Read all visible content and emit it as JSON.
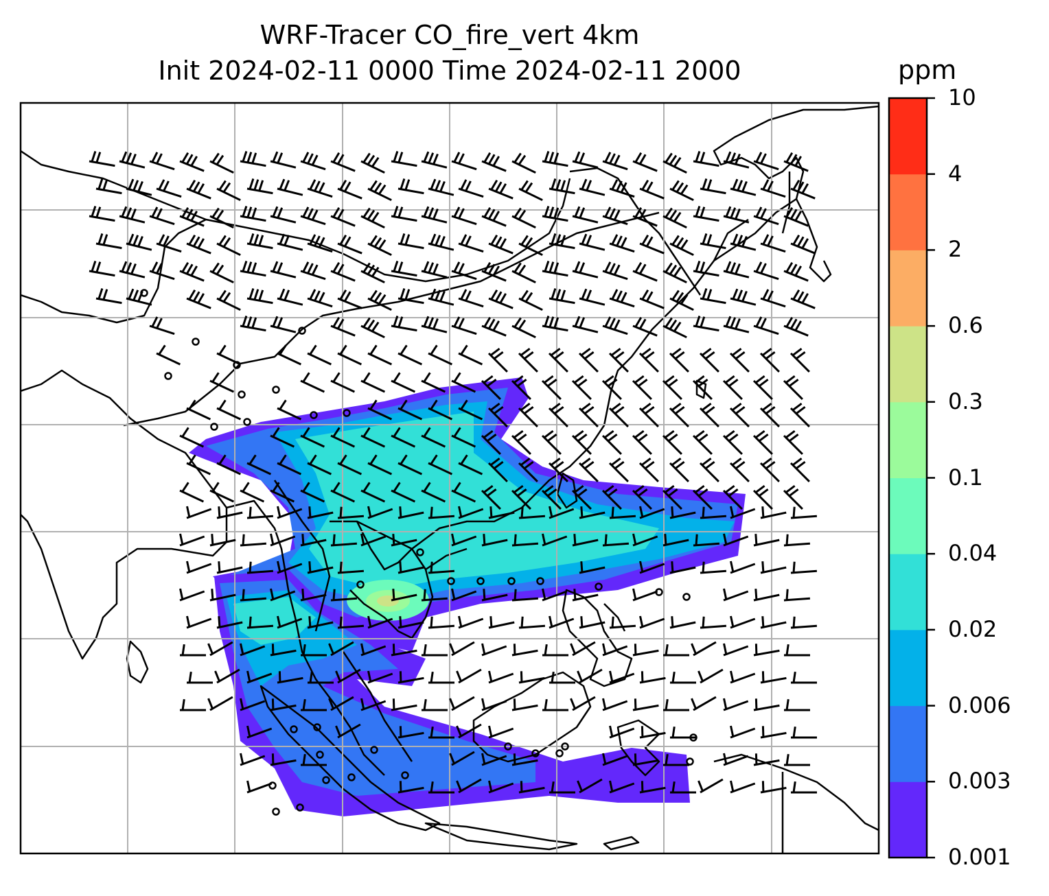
{
  "title": {
    "line1": "WRF-Tracer CO_fire_vert 4km",
    "line2": "Init 2024-02-11 0000 Time 2024-02-11 2000"
  },
  "colorbar": {
    "unit": "ppm",
    "levels": [
      "0.001",
      "0.003",
      "0.006",
      "0.02",
      "0.04",
      "0.1",
      "0.3",
      "0.6",
      "2",
      "4",
      "10"
    ],
    "colors": [
      "#6328fb",
      "#3376f4",
      "#03b1e9",
      "#32e0d7",
      "#6cfbbb",
      "#9bfb9b",
      "#cde387",
      "#fcad64",
      "#ff7240",
      "#ff2d17"
    ]
  },
  "map": {
    "gridlines": true,
    "gridline_color": "#b0b0b0",
    "coastline_color": "#000000",
    "wind_barbs": true,
    "calm_marker": "circle"
  }
}
